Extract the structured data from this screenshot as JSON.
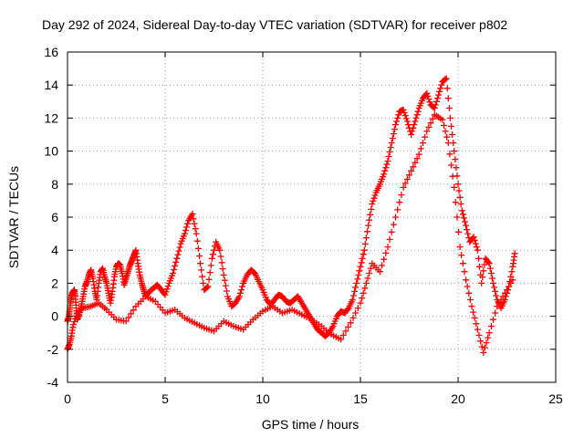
{
  "chart_data": {
    "type": "scatter",
    "title": "Day 292 of 2024, Sidereal Day-to-day VTEC variation (SDTVAR) for receiver p802",
    "xlabel": "GPS time / hours",
    "ylabel": "SDTVAR / TECUs",
    "xlim": [
      0,
      25
    ],
    "ylim": [
      -4,
      16
    ],
    "xticks": [
      0,
      5,
      10,
      15,
      20,
      25
    ],
    "yticks": [
      -4,
      -2,
      0,
      2,
      4,
      6,
      8,
      10,
      12,
      14,
      16
    ],
    "grid": true,
    "marker": "+",
    "marker_color": "#ff0000",
    "series": [
      {
        "name": "SDTVAR",
        "x": [
          0.0,
          0.05,
          0.1,
          0.15,
          0.2,
          0.25,
          0.3,
          0.35,
          0.4,
          0.45,
          0.5,
          0.6,
          0.7,
          0.8,
          0.9,
          1.0,
          1.1,
          1.2,
          1.3,
          1.4,
          1.5,
          1.6,
          1.7,
          1.8,
          1.9,
          2.0,
          2.1,
          2.2,
          2.3,
          2.4,
          2.5,
          2.6,
          2.7,
          2.8,
          2.9,
          3.0,
          3.1,
          3.2,
          3.3,
          3.4,
          3.5,
          3.6,
          3.7,
          3.8,
          3.9,
          4.0,
          4.2,
          4.4,
          4.6,
          4.8,
          5.0,
          5.2,
          5.4,
          5.6,
          5.8,
          6.0,
          6.2,
          6.4,
          6.6,
          6.8,
          7.0,
          7.2,
          7.4,
          7.6,
          7.8,
          8.0,
          8.2,
          8.4,
          8.6,
          8.8,
          9.0,
          9.2,
          9.4,
          9.6,
          9.8,
          10.0,
          10.2,
          10.4,
          10.6,
          10.8,
          11.0,
          11.2,
          11.4,
          11.6,
          11.8,
          12.0,
          12.2,
          12.4,
          12.6,
          12.8,
          13.0,
          13.2,
          13.4,
          13.6,
          13.8,
          14.0,
          14.2,
          14.4,
          14.6,
          14.8,
          15.0,
          15.2,
          15.4,
          15.6,
          15.8,
          16.0,
          16.2,
          16.4,
          16.6,
          16.8,
          17.0,
          17.2,
          17.4,
          17.6,
          17.8,
          18.0,
          18.2,
          18.4,
          18.6,
          18.8,
          19.0,
          19.2,
          19.4,
          19.6,
          19.8,
          20.0,
          20.2,
          20.4,
          20.6,
          20.8,
          21.0,
          21.2,
          21.4,
          21.6,
          21.8,
          22.0,
          22.2,
          22.4,
          22.6,
          22.8,
          22.9,
          0.0,
          0.1,
          0.2,
          0.3,
          0.5,
          0.8,
          1.2,
          1.6,
          2.0,
          2.5,
          3.0,
          3.5,
          4.0,
          4.5,
          5.0,
          5.5,
          6.0,
          6.5,
          7.0,
          7.5,
          8.0,
          8.5,
          9.0,
          9.5,
          10.0,
          10.5,
          11.0,
          11.5,
          12.0,
          12.5,
          13.0,
          13.5,
          14.0,
          14.5,
          15.0,
          15.3,
          15.6,
          16.0,
          16.4,
          16.8,
          17.2,
          17.6,
          18.0,
          18.4,
          18.8,
          19.2,
          19.5,
          19.8,
          20.1,
          20.4,
          20.7,
          21.0,
          21.3,
          21.6,
          22.0,
          22.4,
          22.8
        ],
        "y": [
          -0.3,
          -0.1,
          0.3,
          0.8,
          1.2,
          1.4,
          1.5,
          1.6,
          1.2,
          0.5,
          -0.2,
          0.1,
          0.6,
          1.2,
          1.8,
          2.1,
          2.5,
          2.8,
          2.3,
          1.5,
          1.0,
          2.0,
          2.7,
          2.9,
          2.4,
          2.0,
          1.4,
          0.8,
          1.5,
          2.4,
          3.0,
          3.2,
          3.1,
          2.6,
          1.9,
          2.3,
          2.7,
          3.1,
          3.4,
          3.7,
          4.0,
          3.2,
          2.5,
          2.0,
          1.6,
          1.2,
          1.5,
          1.7,
          1.9,
          1.6,
          1.3,
          2.0,
          2.6,
          3.5,
          4.4,
          5.0,
          5.8,
          6.2,
          5.0,
          3.2,
          1.6,
          1.8,
          3.5,
          4.5,
          4.0,
          2.5,
          1.2,
          0.6,
          0.8,
          1.2,
          2.0,
          2.5,
          2.8,
          2.6,
          2.1,
          1.6,
          1.0,
          0.7,
          1.0,
          1.3,
          1.2,
          0.9,
          0.8,
          1.0,
          1.2,
          0.8,
          0.4,
          0.0,
          -0.4,
          -0.8,
          -1.0,
          -1.2,
          -1.0,
          -0.6,
          0.0,
          0.3,
          0.2,
          0.5,
          1.0,
          2.0,
          3.0,
          4.0,
          5.5,
          6.8,
          7.5,
          8.0,
          8.6,
          9.4,
          10.5,
          11.6,
          12.4,
          12.5,
          11.8,
          11.0,
          11.8,
          12.6,
          13.2,
          13.5,
          12.8,
          12.6,
          13.4,
          14.2,
          14.4,
          12.0,
          10.0,
          8.0,
          6.4,
          5.5,
          4.5,
          4.8,
          4.0,
          2.0,
          3.5,
          3.2,
          2.0,
          1.0,
          0.5,
          1.0,
          1.8,
          3.0,
          3.8,
          -2.0,
          -1.7,
          -1.2,
          -0.5,
          0.2,
          0.5,
          0.6,
          0.8,
          0.4,
          -0.2,
          -0.3,
          0.6,
          1.2,
          0.9,
          0.2,
          0.4,
          -0.1,
          -0.4,
          -0.7,
          -0.9,
          -0.3,
          -0.6,
          -0.8,
          -0.2,
          0.3,
          0.6,
          0.2,
          0.4,
          0.1,
          -0.2,
          -0.6,
          -1.1,
          -1.4,
          -0.4,
          0.8,
          2.0,
          3.2,
          2.7,
          4.2,
          6.0,
          7.8,
          8.8,
          9.8,
          11.2,
          12.2,
          11.9,
          10.5,
          7.8,
          4.2,
          2.2,
          0.6,
          -0.8,
          -2.2,
          -1.0,
          0.6,
          1.4,
          2.2
        ]
      }
    ]
  }
}
